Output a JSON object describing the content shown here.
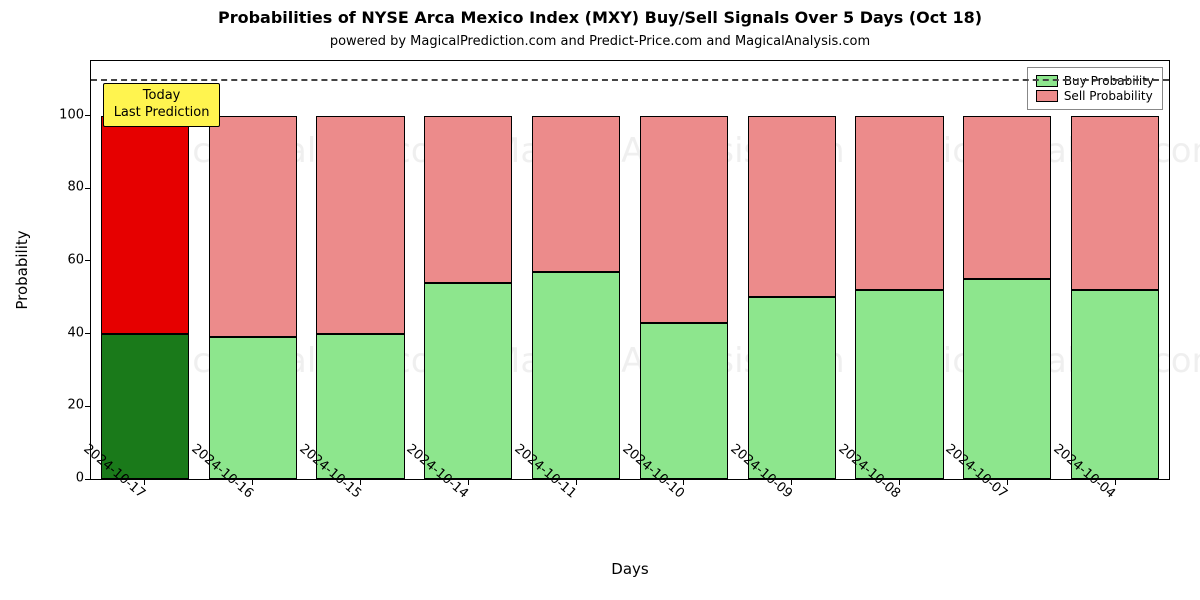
{
  "chart": {
    "type": "stacked-bar",
    "title": "Probabilities of NYSE Arca Mexico Index (MXY) Buy/Sell Signals Over 5 Days (Oct 18)",
    "title_fontsize": 16,
    "subtitle": "powered by MagicalPrediction.com and Predict-Price.com and MagicalAnalysis.com",
    "subtitle_fontsize": 13,
    "xlabel": "Days",
    "ylabel": "Probability",
    "label_fontsize": 15,
    "tick_fontsize": 13,
    "background_color": "#ffffff",
    "axis_color": "#000000",
    "ylim": [
      0,
      115
    ],
    "yticks": [
      0,
      20,
      40,
      60,
      80,
      100
    ],
    "hline_at": 110,
    "hline_style": "dashed",
    "hline_color": "#444444",
    "bar_width_ratio": 0.82,
    "buy_color": "#8de68d",
    "sell_color": "#ec8b8b",
    "buy_color_highlight": "#1a7a1a",
    "sell_color_highlight": "#e60000",
    "bar_border_color": "#000000",
    "categories": [
      "2024-10-17",
      "2024-10-16",
      "2024-10-15",
      "2024-10-14",
      "2024-10-11",
      "2024-10-10",
      "2024-10-09",
      "2024-10-08",
      "2024-10-07",
      "2024-10-04"
    ],
    "buy_values": [
      40,
      39,
      40,
      54,
      57,
      43,
      50,
      52,
      55,
      52
    ],
    "sell_values": [
      60,
      61,
      60,
      46,
      43,
      57,
      50,
      48,
      45,
      48
    ],
    "highlight_index": 0,
    "callout": {
      "line1": "Today",
      "line2": "Last Prediction",
      "background": "#fff44f",
      "border": "#000000"
    },
    "legend": {
      "buy_label": "Buy Probability",
      "sell_label": "Sell Probability"
    },
    "watermark_text": "MagicalAnalysis.com",
    "watermark_opacity": 0.07,
    "watermark_fontsize": 34
  }
}
